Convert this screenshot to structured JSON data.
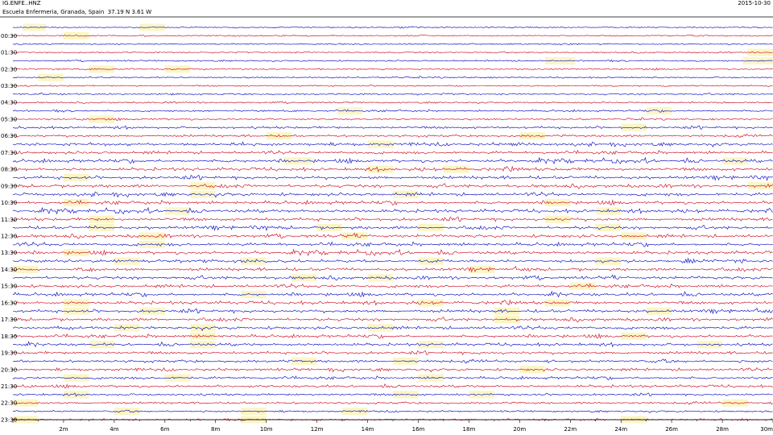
{
  "header": {
    "station": "IG.ENFE..HNZ",
    "location": "Escuela Enfermeria, Granada, Spain",
    "coords": "37.19 N 3.61 W",
    "date": "2015-10-30"
  },
  "chart_data": {
    "type": "line",
    "title": "IG.ENFE..HNZ",
    "subtitle": "Escuela Enfermeria, Granada, Spain  37.19 N 3.61 W",
    "date": "2015-10-30",
    "xlabel": "",
    "ylabel": "",
    "xlim_minutes": [
      0,
      30
    ],
    "x_ticks": [
      "2m",
      "4m",
      "6m",
      "8m",
      "10m",
      "12m",
      "14m",
      "16m",
      "18m",
      "20m",
      "22m",
      "24m",
      "26m",
      "28m",
      "30m"
    ],
    "rows": 48,
    "row_minutes": 30,
    "y_tick_labels": [
      "00:30",
      "01:30",
      "02:30",
      "03:30",
      "04:30",
      "05:30",
      "06:30",
      "07:30",
      "08:30",
      "09:30",
      "10:30",
      "11:30",
      "12:30",
      "13:30",
      "14:30",
      "15:30",
      "16:30",
      "17:30",
      "18:30",
      "19:30",
      "20:30",
      "21:30",
      "22:30",
      "23:30"
    ],
    "trace_colors": [
      "#1a1ac8",
      "#d01a30"
    ],
    "gap_color": "#fbf6c4",
    "activity_by_hour": [
      0.3,
      0.3,
      0.35,
      0.35,
      0.4,
      0.5,
      0.7,
      0.9,
      1,
      1,
      1,
      1,
      1,
      1,
      0.95,
      0.95,
      0.95,
      0.95,
      0.9,
      0.85,
      0.8,
      0.75,
      0.6,
      0.45
    ],
    "gaps": [
      [
        0,
        0.4,
        1.3
      ],
      [
        0,
        5.0,
        6.0
      ],
      [
        1,
        2.0,
        3.0
      ],
      [
        3,
        29.0,
        30.0
      ],
      [
        4,
        21.0,
        22.2
      ],
      [
        4,
        28.8,
        30.0
      ],
      [
        5,
        3.0,
        4.0
      ],
      [
        5,
        6.0,
        7.0
      ],
      [
        6,
        1.0,
        2.0
      ],
      [
        10,
        12.8,
        13.8
      ],
      [
        10,
        25.0,
        26.0
      ],
      [
        11,
        3.0,
        4.0
      ],
      [
        12,
        24.0,
        25.0
      ],
      [
        13,
        10.0,
        11.0
      ],
      [
        13,
        20.0,
        21.0
      ],
      [
        14,
        14.0,
        15.0
      ],
      [
        16,
        10.7,
        11.8
      ],
      [
        16,
        28.0,
        29.0
      ],
      [
        17,
        14.0,
        15.0
      ],
      [
        17,
        17.0,
        18.0
      ],
      [
        18,
        2.0,
        3.0
      ],
      [
        19,
        7.0,
        8.0
      ],
      [
        19,
        29.0,
        30.0
      ],
      [
        20,
        7.0,
        8.0
      ],
      [
        20,
        15.0,
        16.0
      ],
      [
        21,
        2.0,
        3.0
      ],
      [
        21,
        21.0,
        22.0
      ],
      [
        22,
        6.0,
        7.0
      ],
      [
        22,
        23.0,
        24.0
      ],
      [
        23,
        3.0,
        4.0
      ],
      [
        23,
        21.0,
        22.0
      ],
      [
        24,
        3.0,
        4.0
      ],
      [
        24,
        12.0,
        13.0
      ],
      [
        24,
        16.0,
        17.0
      ],
      [
        24,
        23.0,
        24.0
      ],
      [
        25,
        5.0,
        6.0
      ],
      [
        25,
        13.0,
        14.0
      ],
      [
        25,
        24.0,
        25.0
      ],
      [
        26,
        5.0,
        6.0
      ],
      [
        27,
        2.0,
        3.0
      ],
      [
        28,
        4.0,
        5.0
      ],
      [
        28,
        9.0,
        10.0
      ],
      [
        28,
        16.0,
        17.0
      ],
      [
        28,
        23.0,
        24.0
      ],
      [
        29,
        0.0,
        1.0
      ],
      [
        29,
        18.0,
        19.0
      ],
      [
        30,
        11.0,
        12.0
      ],
      [
        30,
        14.0,
        15.0
      ],
      [
        31,
        22.0,
        23.0
      ],
      [
        32,
        9.0,
        10.0
      ],
      [
        33,
        2.0,
        3.0
      ],
      [
        33,
        16.0,
        17.0
      ],
      [
        33,
        21.0,
        22.0
      ],
      [
        34,
        2.0,
        3.0
      ],
      [
        34,
        5.0,
        6.0
      ],
      [
        34,
        19.0,
        20.0
      ],
      [
        34,
        25.0,
        26.0
      ],
      [
        35,
        19.0,
        20.0
      ],
      [
        36,
        4.0,
        5.0
      ],
      [
        36,
        7.0,
        8.0
      ],
      [
        36,
        14.0,
        15.0
      ],
      [
        37,
        7.0,
        8.0
      ],
      [
        37,
        24.0,
        25.0
      ],
      [
        38,
        3.0,
        4.0
      ],
      [
        38,
        7.0,
        8.0
      ],
      [
        38,
        16.0,
        17.0
      ],
      [
        38,
        27.0,
        28.0
      ],
      [
        40,
        11.0,
        12.0
      ],
      [
        40,
        15.0,
        16.0
      ],
      [
        41,
        20.0,
        21.0
      ],
      [
        42,
        2.0,
        3.0
      ],
      [
        42,
        6.0,
        7.0
      ],
      [
        42,
        16.0,
        17.0
      ],
      [
        44,
        2.0,
        3.0
      ],
      [
        44,
        15.0,
        16.0
      ],
      [
        44,
        18.0,
        19.0
      ],
      [
        45,
        0.0,
        1.0
      ],
      [
        45,
        28.0,
        29.0
      ],
      [
        46,
        4.0,
        5.0
      ],
      [
        46,
        9.0,
        10.0
      ],
      [
        46,
        13.0,
        14.0
      ],
      [
        47,
        0.0,
        1.0
      ],
      [
        47,
        9.0,
        10.0
      ],
      [
        47,
        24.0,
        25.0
      ]
    ]
  }
}
